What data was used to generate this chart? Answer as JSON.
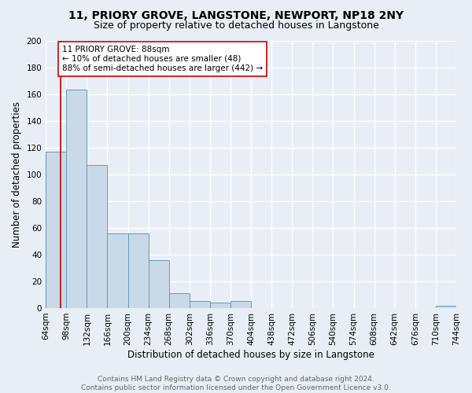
{
  "title1": "11, PRIORY GROVE, LANGSTONE, NEWPORT, NP18 2NY",
  "title2": "Size of property relative to detached houses in Langstone",
  "xlabel": "Distribution of detached houses by size in Langstone",
  "ylabel": "Number of detached properties",
  "bin_labels": [
    "64sqm",
    "98sqm",
    "132sqm",
    "166sqm",
    "200sqm",
    "234sqm",
    "268sqm",
    "302sqm",
    "336sqm",
    "370sqm",
    "404sqm",
    "438sqm",
    "472sqm",
    "506sqm",
    "540sqm",
    "574sqm",
    "608sqm",
    "642sqm",
    "676sqm",
    "710sqm",
    "744sqm"
  ],
  "bin_left_edges": [
    64,
    98,
    132,
    166,
    200,
    234,
    268,
    302,
    336,
    370,
    404,
    438,
    472,
    506,
    540,
    574,
    608,
    642,
    676,
    710
  ],
  "all_edges": [
    64,
    98,
    132,
    166,
    200,
    234,
    268,
    302,
    336,
    370,
    404,
    438,
    472,
    506,
    540,
    574,
    608,
    642,
    676,
    710,
    744
  ],
  "bar_heights": [
    117,
    163,
    107,
    56,
    56,
    36,
    11,
    5,
    4,
    5,
    0,
    0,
    0,
    0,
    0,
    0,
    0,
    0,
    0,
    2
  ],
  "bar_color": "#c9d9e8",
  "bar_edge_color": "#6699bb",
  "ylim": [
    0,
    200
  ],
  "yticks": [
    0,
    20,
    40,
    60,
    80,
    100,
    120,
    140,
    160,
    180,
    200
  ],
  "vline_x": 88,
  "vline_color": "#cc0000",
  "annotation_text": "11 PRIORY GROVE: 88sqm\n← 10% of detached houses are smaller (48)\n88% of semi-detached houses are larger (442) →",
  "annotation_box_color": "#ffffff",
  "annotation_box_edge": "#cc0000",
  "footer_text": "Contains HM Land Registry data © Crown copyright and database right 2024.\nContains public sector information licensed under the Open Government Licence v3.0.",
  "bg_color": "#e8eef5",
  "plot_bg_color": "#e8eef5",
  "grid_color": "#ffffff",
  "title1_fontsize": 10,
  "title2_fontsize": 9,
  "xlabel_fontsize": 8.5,
  "ylabel_fontsize": 8.5,
  "tick_fontsize": 7.5,
  "annotation_fontsize": 7.5,
  "footer_fontsize": 6.5
}
